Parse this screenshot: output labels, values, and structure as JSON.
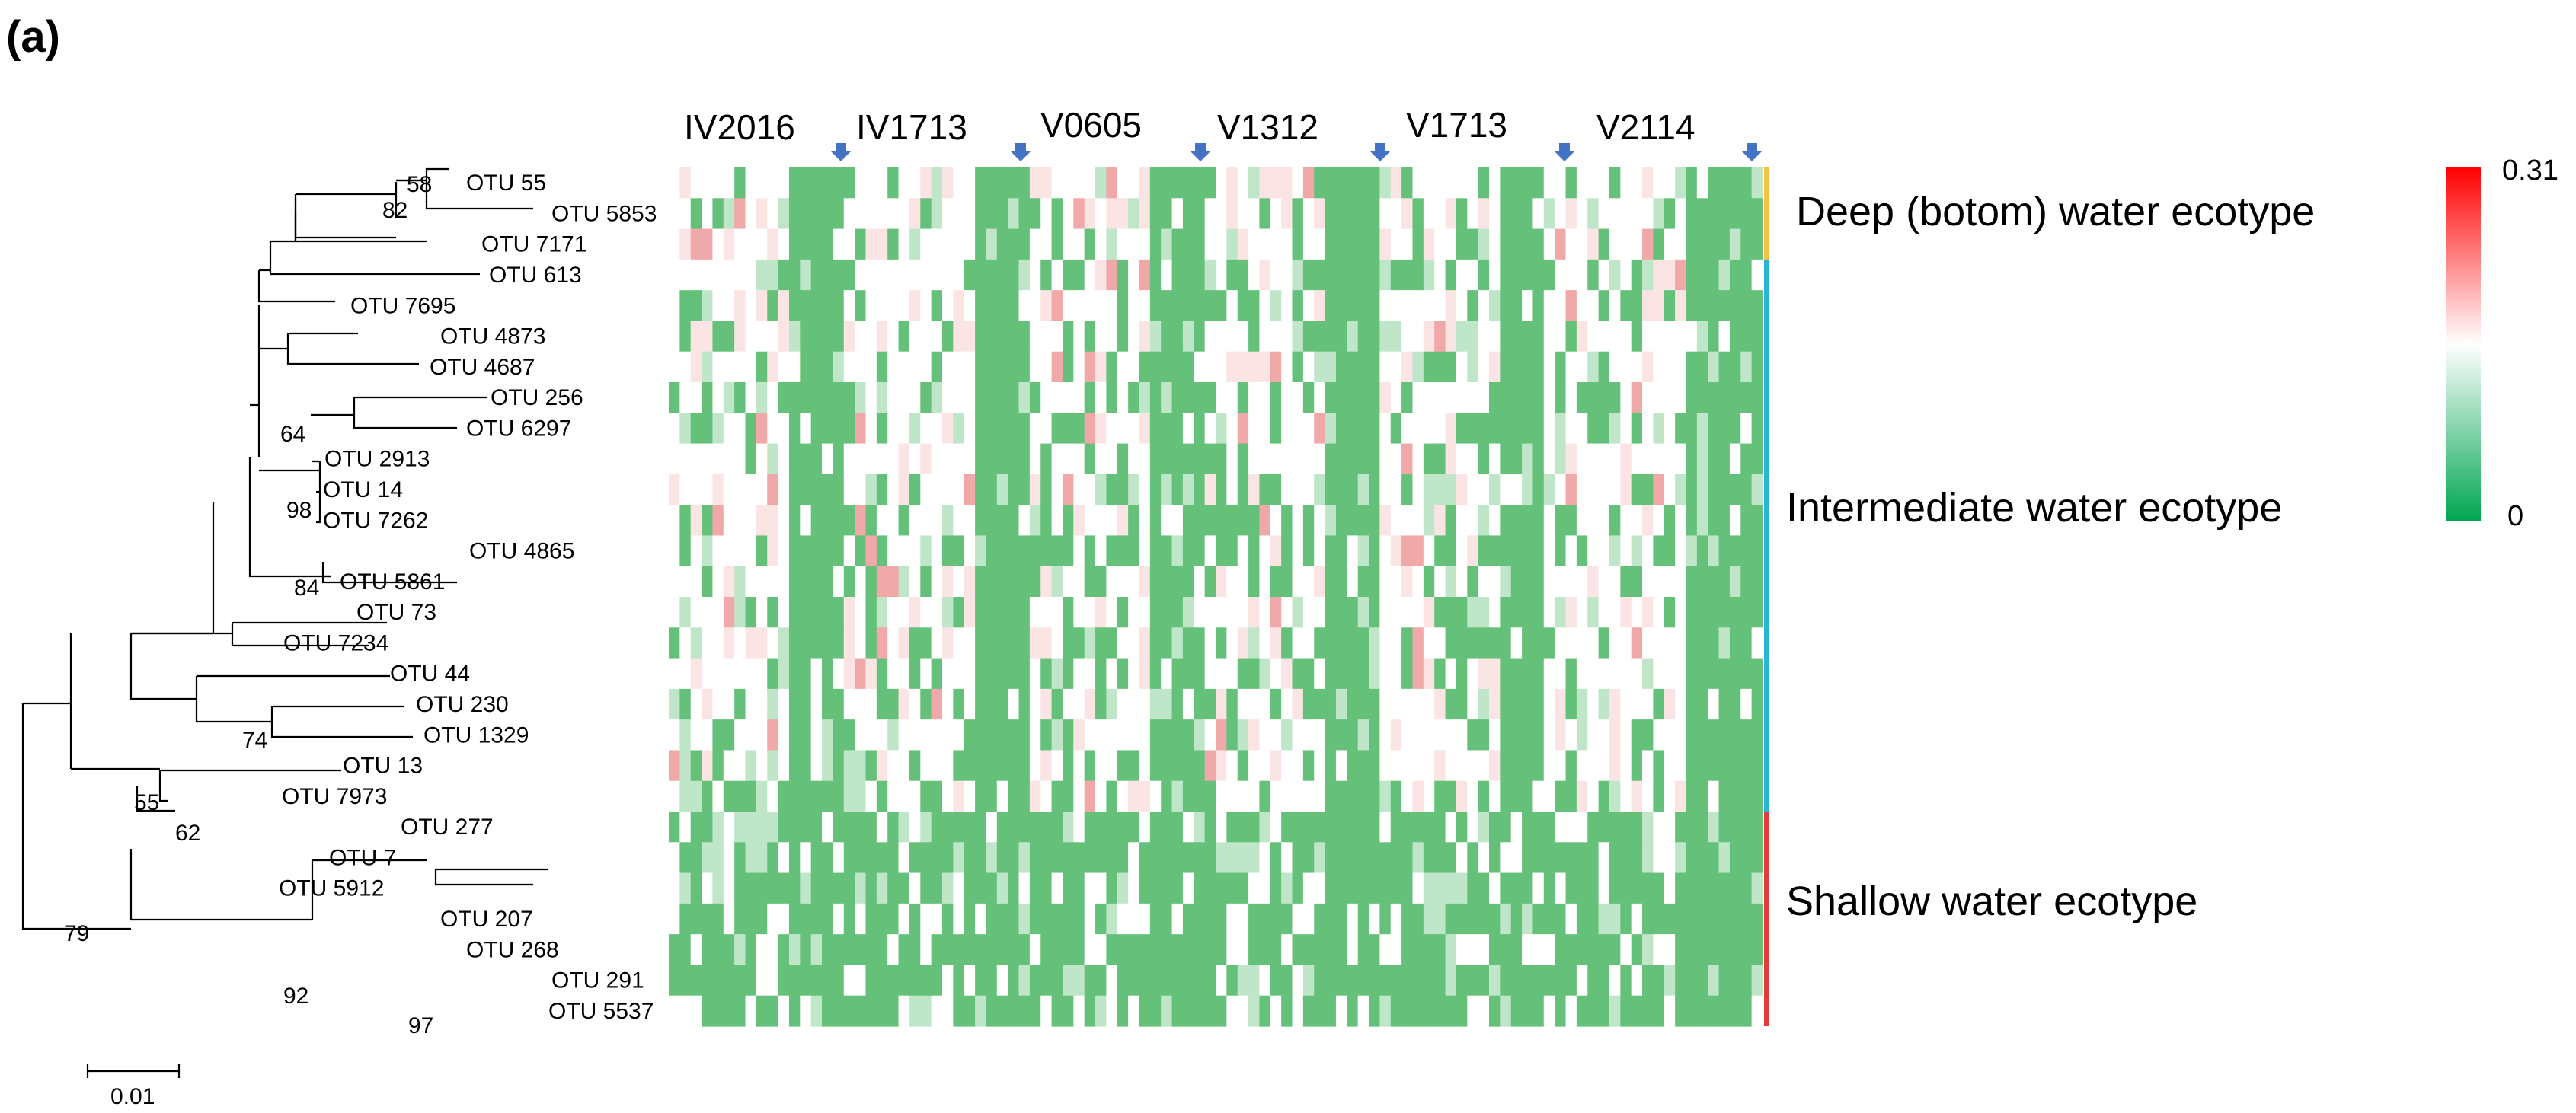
{
  "panel_label": "(a)",
  "chart_data": {
    "type": "heatmap",
    "title": "",
    "site_labels": [
      "IV2016",
      "IV1713",
      "V0605",
      "V1312",
      "V1713",
      "V2114"
    ],
    "rows": [
      "OTU 55",
      "OTU 5853",
      "OTU 7171",
      "OTU 613",
      "OTU 7695",
      "OTU 4873",
      "OTU 4687",
      "OTU 256",
      "OTU 6297",
      "OTU 2913",
      "OTU 14",
      "OTU 7262",
      "OTU 4865",
      "OTU 5861",
      "OTU 73",
      "OTU 7234",
      "OTU 44",
      "OTU 230",
      "OTU 1329",
      "OTU 13",
      "OTU 7973",
      "OTU 277",
      "OTU 7",
      "OTU 5912",
      "OTU 207",
      "OTU 268",
      "OTU 291",
      "OTU 5537"
    ],
    "row_labels": [
      "OTU 55",
      "OTU 5853",
      "OTU 7171",
      "OTU 613",
      "OTU 7695",
      "OTU 4873",
      "OTU 4687",
      "OTU 256",
      "OTU 6297",
      "OTU 2913",
      "OTU 14",
      "OTU 7262",
      "OTU 4865",
      "OTU 5861",
      "OTU 73",
      "OTU 7234",
      "OTU 44",
      "OTU 230",
      "OTU 1329",
      "OTU 13",
      "OTU 7973",
      "OTU 277",
      "OTU 7",
      "OTU 5912",
      "OTU 207",
      "OTU 268",
      "OTU 291",
      "OTU 5537"
    ],
    "colorscale": {
      "min": 0,
      "max": 0.31,
      "colors": [
        "#00a651",
        "#ffffff",
        "#ff0000"
      ]
    },
    "colorbar_max_label": "0.31",
    "colorbar_min_label": "0",
    "ecotypes": [
      {
        "name": "Deep (botom) water ecotype",
        "rows": [
          0,
          2
        ],
        "color": "#f5c242"
      },
      {
        "name": "Intermediate water ecotype",
        "rows": [
          3,
          20
        ],
        "color": "#29b6d6"
      },
      {
        "name": "Shallow  water ecotype",
        "rows": [
          21,
          27
        ],
        "color": "#e23b3b"
      }
    ],
    "bootstrap_values": [
      "58",
      "82",
      "64",
      "98",
      "84",
      "74",
      "55",
      "62",
      "79",
      "92",
      "97"
    ],
    "scale_bar_label": "0.01",
    "arrow_color": "#4472c4",
    "cell_colors": {
      "high": "#f0a8a8",
      "mid": "#fbe4e4",
      "white": "#ffffff",
      "pale_green": "#bfe6c8",
      "green": "#65c17a"
    }
  }
}
